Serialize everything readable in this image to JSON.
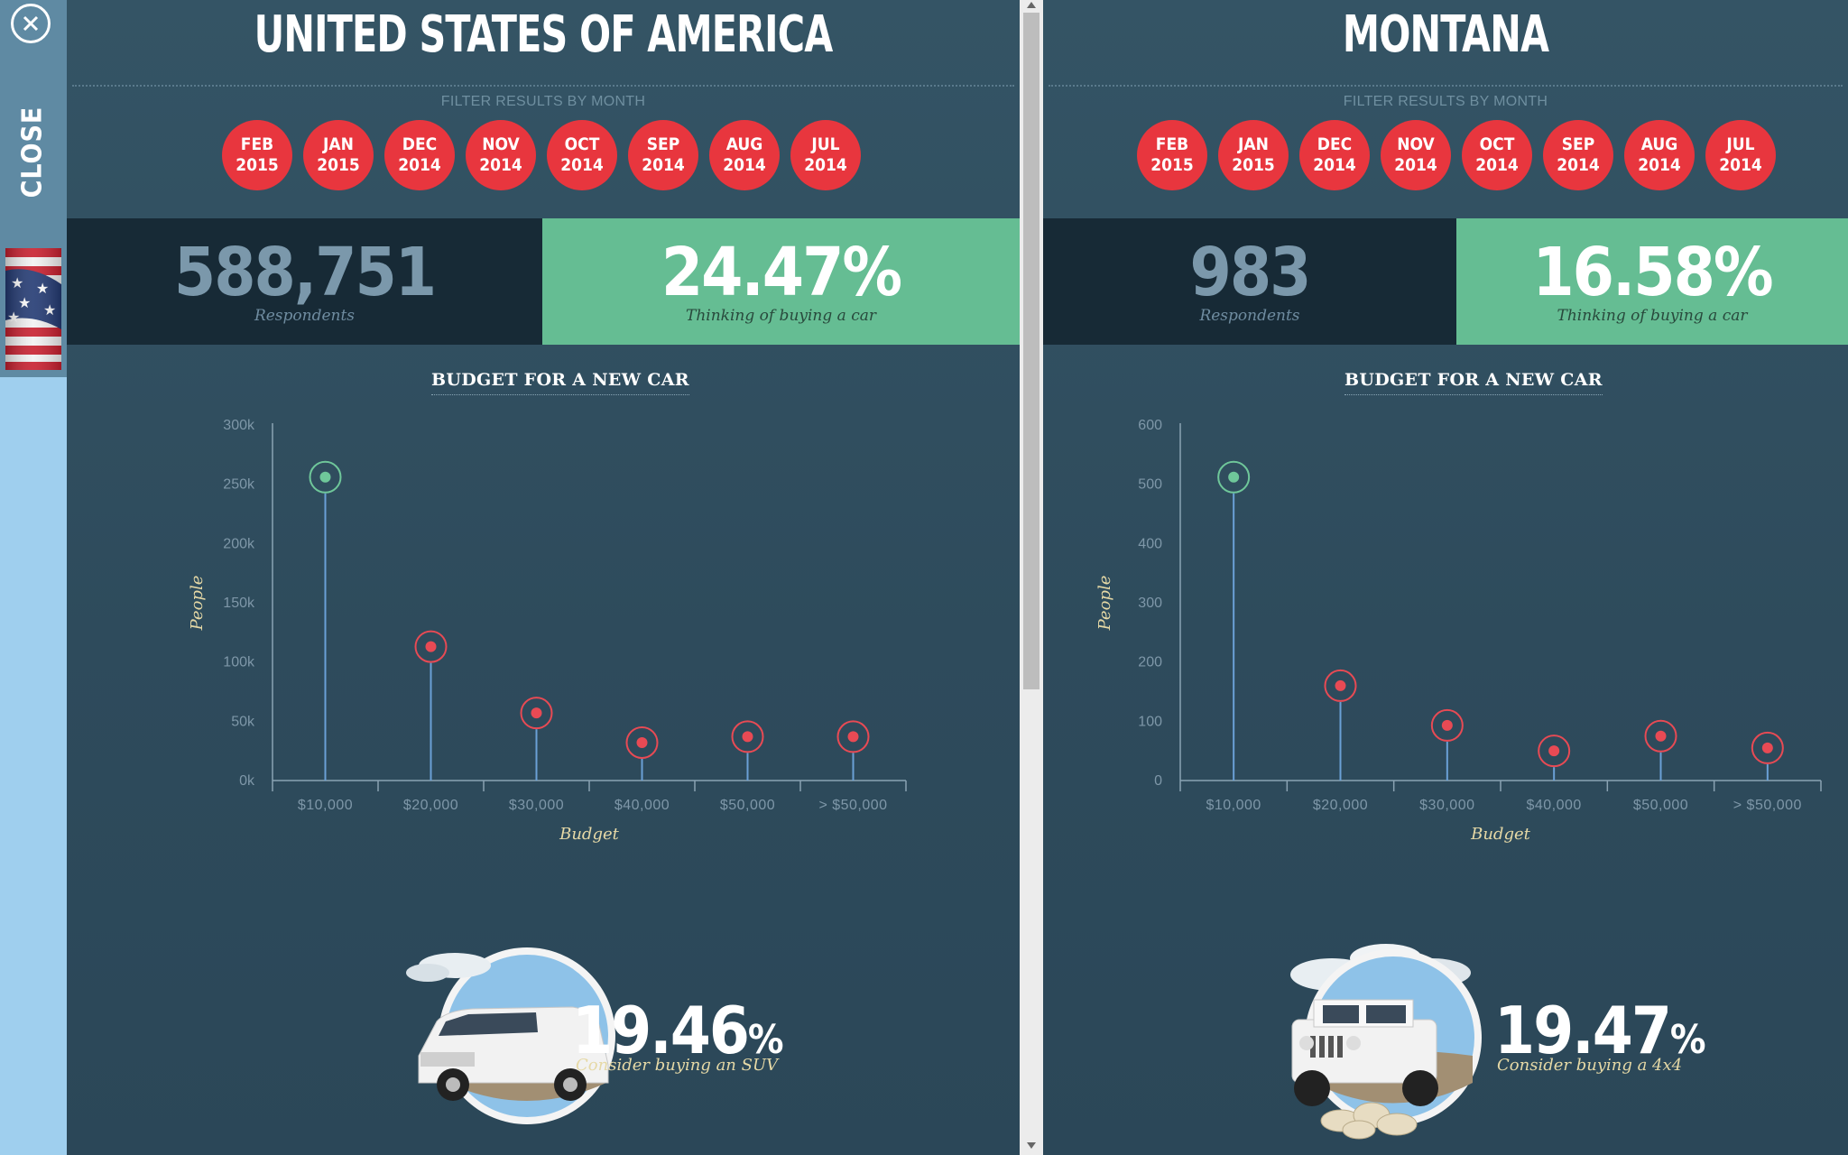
{
  "sidebar": {
    "close_label": "CLOSE"
  },
  "filter_label": "FILTER RESULTS BY MONTH",
  "months": [
    {
      "m": "FEB",
      "y": "2015"
    },
    {
      "m": "JAN",
      "y": "2015"
    },
    {
      "m": "DEC",
      "y": "2014"
    },
    {
      "m": "NOV",
      "y": "2014"
    },
    {
      "m": "OCT",
      "y": "2014"
    },
    {
      "m": "SEP",
      "y": "2014"
    },
    {
      "m": "AUG",
      "y": "2014"
    },
    {
      "m": "JUL",
      "y": "2014"
    }
  ],
  "colors": {
    "month_button": "#e8363e",
    "stat_dark": "#172a36",
    "stat_green": "#65bd93",
    "marker_highlight": "#6fc79a",
    "marker_default": "#e84a54",
    "stem": "#6aa0d6",
    "pct_text": "#e6d9a6"
  },
  "left": {
    "title": "UNITED STATES OF AMERICA",
    "respondents": "588,751",
    "respondents_label": "Respondents",
    "thinking_pct": "24.47%",
    "thinking_label": "Thinking of buying a car",
    "chart_title": "BUDGET FOR A NEW CAR",
    "suv_pct": "19.46",
    "suv_pct_sign": "%",
    "suv_label": "Consider buying an SUV",
    "car_icon": "suv-car-image"
  },
  "right": {
    "title": "MONTANA",
    "respondents": "983",
    "respondents_label": "Respondents",
    "thinking_pct": "16.58%",
    "thinking_label": "Thinking of buying a car",
    "chart_title": "BUDGET FOR A NEW CAR",
    "fx_pct": "19.47",
    "fx_pct_sign": "%",
    "fx_label": "Consider buying a 4x4",
    "car_icon": "jeep-car-image"
  },
  "chart_data": [
    {
      "type": "scatter",
      "title": "BUDGET FOR A NEW CAR",
      "xlabel": "Budget",
      "ylabel": "People",
      "categories": [
        "$10,000",
        "$20,000",
        "$30,000",
        "$40,000",
        "$50,000",
        "> $50,000"
      ],
      "values": [
        256000,
        113000,
        57000,
        32000,
        37000,
        37000
      ],
      "highlight_index": 0,
      "ylim": [
        0,
        300000
      ],
      "yticks": [
        0,
        50000,
        100000,
        150000,
        200000,
        250000,
        300000
      ],
      "ytick_labels": [
        "0k",
        "50k",
        "100k",
        "150k",
        "200k",
        "250k",
        "300k"
      ]
    },
    {
      "type": "scatter",
      "title": "BUDGET FOR A NEW CAR",
      "xlabel": "Budget",
      "ylabel": "People",
      "categories": [
        "$10,000",
        "$20,000",
        "$30,000",
        "$40,000",
        "$50,000",
        "> $50,000"
      ],
      "values": [
        512,
        160,
        93,
        50,
        75,
        55
      ],
      "highlight_index": 0,
      "ylim": [
        0,
        600
      ],
      "yticks": [
        0,
        100,
        200,
        300,
        400,
        500,
        600
      ],
      "ytick_labels": [
        "0",
        "100",
        "200",
        "300",
        "400",
        "500",
        "600"
      ]
    }
  ]
}
